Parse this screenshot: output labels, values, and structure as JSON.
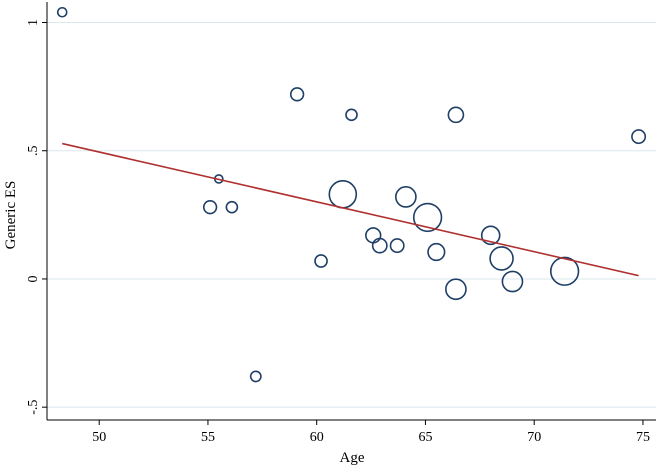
{
  "chart_data": {
    "type": "scatter",
    "title": "",
    "xlabel": "Age",
    "ylabel": "Generic ES",
    "xlim": [
      47.6,
      75.6
    ],
    "ylim": [
      -0.55,
      1.08
    ],
    "x_ticks": [
      50,
      55,
      60,
      65,
      70,
      75
    ],
    "x_tick_labels": [
      "50",
      "55",
      "60",
      "65",
      "70",
      "75"
    ],
    "y_ticks": [
      -0.5,
      0,
      0.5,
      1
    ],
    "y_tick_labels": [
      "-.5",
      "0",
      ".5",
      "1"
    ],
    "grid": "horizontal",
    "legend": "none",
    "colors": {
      "marker": "#1f3f66",
      "fit_line": "#b03030",
      "grid": "#dbe8ee",
      "axis": "#000000"
    },
    "series": [
      {
        "marker": "hollow-circle",
        "weighted_marker_size": true,
        "points": [
          {
            "x": 48.3,
            "y": 1.04,
            "w": 1
          },
          {
            "x": 55.5,
            "y": 0.39,
            "w": 0.8
          },
          {
            "x": 55.1,
            "y": 0.28,
            "w": 2
          },
          {
            "x": 56.1,
            "y": 0.28,
            "w": 1.5
          },
          {
            "x": 57.2,
            "y": -0.38,
            "w": 1.3
          },
          {
            "x": 59.1,
            "y": 0.72,
            "w": 2
          },
          {
            "x": 60.2,
            "y": 0.07,
            "w": 1.8
          },
          {
            "x": 61.2,
            "y": 0.33,
            "w": 9
          },
          {
            "x": 61.6,
            "y": 0.64,
            "w": 1.5
          },
          {
            "x": 62.6,
            "y": 0.17,
            "w": 2.7
          },
          {
            "x": 62.9,
            "y": 0.13,
            "w": 2.5
          },
          {
            "x": 63.7,
            "y": 0.13,
            "w": 2.2
          },
          {
            "x": 64.1,
            "y": 0.32,
            "w": 5
          },
          {
            "x": 65.1,
            "y": 0.24,
            "w": 9.5
          },
          {
            "x": 65.5,
            "y": 0.105,
            "w": 3.4
          },
          {
            "x": 66.4,
            "y": 0.64,
            "w": 2.8
          },
          {
            "x": 66.4,
            "y": -0.04,
            "w": 5
          },
          {
            "x": 68.0,
            "y": 0.17,
            "w": 4
          },
          {
            "x": 68.5,
            "y": 0.08,
            "w": 6.5
          },
          {
            "x": 69.0,
            "y": -0.01,
            "w": 5
          },
          {
            "x": 71.4,
            "y": 0.03,
            "w": 9.5
          },
          {
            "x": 74.8,
            "y": 0.555,
            "w": 2.2
          }
        ]
      }
    ],
    "fit_line": {
      "x": [
        48.3,
        74.8
      ],
      "y": [
        0.528,
        0.013
      ]
    }
  }
}
